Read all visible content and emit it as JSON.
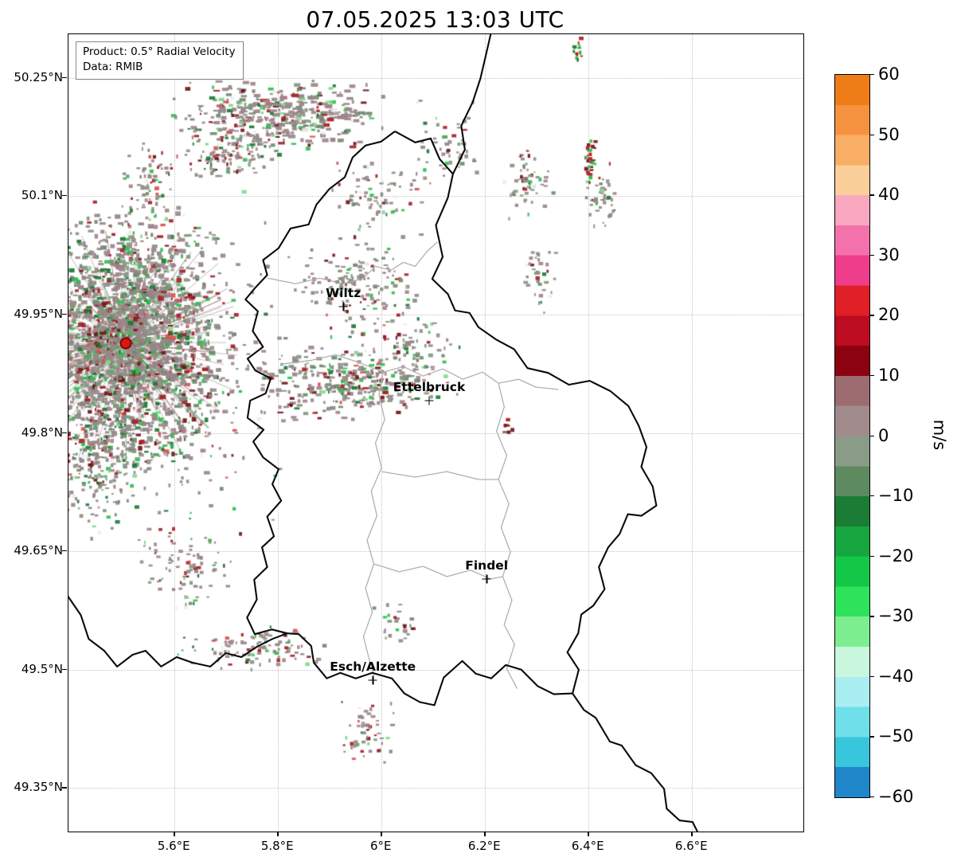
{
  "title": "07.05.2025 13:03 UTC",
  "info_box": {
    "line1": "Product: 0.5° Radial Velocity",
    "line2": "Data: RMIB"
  },
  "axes": {
    "lon_min": 5.395,
    "lon_max": 6.815,
    "lat_min": 49.295,
    "lat_max": 50.305,
    "x_ticks": [
      {
        "v": 5.6,
        "label": "5.6°E"
      },
      {
        "v": 5.8,
        "label": "5.8°E"
      },
      {
        "v": 6.0,
        "label": "6°E"
      },
      {
        "v": 6.2,
        "label": "6.2°E"
      },
      {
        "v": 6.4,
        "label": "6.4°E"
      },
      {
        "v": 6.6,
        "label": "6.6°E"
      }
    ],
    "y_ticks": [
      {
        "v": 50.25,
        "label": "50.25°N"
      },
      {
        "v": 50.1,
        "label": "50.1°N"
      },
      {
        "v": 49.95,
        "label": "49.95°N"
      },
      {
        "v": 49.8,
        "label": "49.8°N"
      },
      {
        "v": 49.65,
        "label": "49.65°N"
      },
      {
        "v": 49.5,
        "label": "49.5°N"
      },
      {
        "v": 49.35,
        "label": "49.35°N"
      }
    ],
    "grid_color": "#c4c4c4"
  },
  "colorbar": {
    "label": "m/s",
    "min": -60,
    "max": 60,
    "ticks": [
      {
        "v": 60,
        "label": "60"
      },
      {
        "v": 50,
        "label": "50"
      },
      {
        "v": 40,
        "label": "40"
      },
      {
        "v": 30,
        "label": "30"
      },
      {
        "v": 20,
        "label": "20"
      },
      {
        "v": 10,
        "label": "10"
      },
      {
        "v": 0,
        "label": "0"
      },
      {
        "v": -10,
        "label": "−10"
      },
      {
        "v": -20,
        "label": "−20"
      },
      {
        "v": -30,
        "label": "−30"
      },
      {
        "v": -40,
        "label": "−40"
      },
      {
        "v": -50,
        "label": "−50"
      },
      {
        "v": -60,
        "label": "−60"
      }
    ],
    "bands": [
      {
        "from": 55,
        "to": 60,
        "color": "#ee7d18"
      },
      {
        "from": 50,
        "to": 55,
        "color": "#f5923f"
      },
      {
        "from": 45,
        "to": 50,
        "color": "#f9ae66"
      },
      {
        "from": 40,
        "to": 45,
        "color": "#fbcf9a"
      },
      {
        "from": 35,
        "to": 40,
        "color": "#f9a8c0"
      },
      {
        "from": 30,
        "to": 35,
        "color": "#f472ab"
      },
      {
        "from": 25,
        "to": 30,
        "color": "#ee3d8a"
      },
      {
        "from": 20,
        "to": 25,
        "color": "#e01f26"
      },
      {
        "from": 15,
        "to": 20,
        "color": "#bb0c22"
      },
      {
        "from": 10,
        "to": 15,
        "color": "#8c0210"
      },
      {
        "from": 5,
        "to": 10,
        "color": "#9d6c70"
      },
      {
        "from": 0,
        "to": 5,
        "color": "#a18b8d"
      },
      {
        "from": -5,
        "to": 0,
        "color": "#8a9b87"
      },
      {
        "from": -10,
        "to": -5,
        "color": "#5d8a5f"
      },
      {
        "from": -15,
        "to": -10,
        "color": "#1b7c35"
      },
      {
        "from": -20,
        "to": -15,
        "color": "#17a53f"
      },
      {
        "from": -25,
        "to": -20,
        "color": "#13c847"
      },
      {
        "from": -30,
        "to": -25,
        "color": "#2ee25b"
      },
      {
        "from": -35,
        "to": -30,
        "color": "#7dee8f"
      },
      {
        "from": -40,
        "to": -35,
        "color": "#c9f7dd"
      },
      {
        "from": -45,
        "to": -40,
        "color": "#a8eef2"
      },
      {
        "from": -50,
        "to": -45,
        "color": "#6fdfe9"
      },
      {
        "from": -55,
        "to": -50,
        "color": "#38c6dc"
      },
      {
        "from": -60,
        "to": -55,
        "color": "#1f86c9"
      }
    ]
  },
  "cities": [
    {
      "name": "Wiltz",
      "lon": 5.926,
      "lat": 49.96
    },
    {
      "name": "Ettelbruck",
      "lon": 6.092,
      "lat": 49.841
    },
    {
      "name": "Findel",
      "lon": 6.203,
      "lat": 49.615
    },
    {
      "name": "Esch/Alzette",
      "lon": 5.983,
      "lat": 49.487
    }
  ],
  "radar_site": {
    "lon": 5.505,
    "lat": 49.914,
    "fill": "#e01212",
    "edge": "#7c0606"
  },
  "map": {
    "country_border_color": "#0a0a0a",
    "district_border_color": "#b0b0b0",
    "country_borders": [
      [
        [
          6.026,
          50.182
        ],
        [
          6.065,
          50.168
        ],
        [
          6.095,
          50.173
        ],
        [
          6.112,
          50.147
        ],
        [
          6.138,
          50.128
        ],
        [
          6.128,
          50.098
        ],
        [
          6.105,
          50.063
        ],
        [
          6.118,
          50.023
        ],
        [
          6.098,
          49.995
        ],
        [
          6.128,
          49.976
        ],
        [
          6.142,
          49.955
        ],
        [
          6.17,
          49.952
        ],
        [
          6.187,
          49.934
        ],
        [
          6.222,
          49.918
        ],
        [
          6.256,
          49.906
        ],
        [
          6.282,
          49.882
        ],
        [
          6.322,
          49.876
        ],
        [
          6.362,
          49.861
        ],
        [
          6.402,
          49.866
        ],
        [
          6.442,
          49.853
        ],
        [
          6.477,
          49.834
        ],
        [
          6.497,
          49.809
        ],
        [
          6.512,
          49.782
        ],
        [
          6.502,
          49.757
        ],
        [
          6.524,
          49.732
        ],
        [
          6.531,
          49.708
        ],
        [
          6.502,
          49.695
        ],
        [
          6.476,
          49.697
        ],
        [
          6.46,
          49.672
        ],
        [
          6.438,
          49.655
        ],
        [
          6.42,
          49.63
        ],
        [
          6.431,
          49.602
        ],
        [
          6.409,
          49.581
        ],
        [
          6.386,
          49.57
        ],
        [
          6.38,
          49.546
        ],
        [
          6.359,
          49.522
        ],
        [
          6.381,
          49.5
        ],
        [
          6.369,
          49.47
        ],
        [
          6.333,
          49.469
        ],
        [
          6.302,
          49.479
        ],
        [
          6.27,
          49.5
        ],
        [
          6.24,
          49.506
        ],
        [
          6.212,
          49.489
        ],
        [
          6.182,
          49.495
        ],
        [
          6.156,
          49.511
        ],
        [
          6.12,
          49.49
        ],
        [
          6.102,
          49.455
        ],
        [
          6.074,
          49.459
        ],
        [
          6.044,
          49.47
        ],
        [
          6.02,
          49.489
        ],
        [
          5.982,
          49.496
        ],
        [
          5.95,
          49.489
        ],
        [
          5.92,
          49.496
        ],
        [
          5.894,
          49.489
        ],
        [
          5.869,
          49.509
        ],
        [
          5.864,
          49.53
        ],
        [
          5.84,
          49.545
        ],
        [
          5.818,
          49.546
        ],
        [
          5.788,
          49.551
        ],
        [
          5.755,
          49.545
        ],
        [
          5.74,
          49.566
        ],
        [
          5.759,
          49.589
        ],
        [
          5.754,
          49.614
        ],
        [
          5.779,
          49.63
        ],
        [
          5.769,
          49.655
        ],
        [
          5.792,
          49.669
        ],
        [
          5.779,
          49.694
        ],
        [
          5.806,
          49.714
        ],
        [
          5.789,
          49.735
        ],
        [
          5.801,
          49.754
        ],
        [
          5.771,
          49.769
        ],
        [
          5.752,
          49.789
        ],
        [
          5.772,
          49.804
        ],
        [
          5.741,
          49.819
        ],
        [
          5.746,
          49.841
        ],
        [
          5.776,
          49.85
        ],
        [
          5.786,
          49.869
        ],
        [
          5.756,
          49.879
        ],
        [
          5.741,
          49.894
        ],
        [
          5.771,
          49.909
        ],
        [
          5.751,
          49.929
        ],
        [
          5.761,
          49.954
        ],
        [
          5.737,
          49.969
        ],
        [
          5.756,
          49.984
        ],
        [
          5.779,
          50.0
        ],
        [
          5.771,
          50.019
        ],
        [
          5.801,
          50.034
        ],
        [
          5.824,
          50.059
        ],
        [
          5.859,
          50.064
        ],
        [
          5.874,
          50.089
        ],
        [
          5.899,
          50.109
        ],
        [
          5.929,
          50.124
        ],
        [
          5.944,
          50.149
        ],
        [
          5.969,
          50.164
        ],
        [
          5.999,
          50.169
        ],
        [
          6.026,
          50.182
        ]
      ],
      [
        [
          6.138,
          50.128
        ],
        [
          6.161,
          50.159
        ],
        [
          6.154,
          50.189
        ],
        [
          6.176,
          50.219
        ],
        [
          6.191,
          50.249
        ],
        [
          6.201,
          50.277
        ],
        [
          6.212,
          50.308
        ]
      ],
      [
        [
          5.818,
          49.546
        ],
        [
          5.789,
          49.539
        ],
        [
          5.759,
          49.529
        ],
        [
          5.729,
          49.516
        ],
        [
          5.699,
          49.521
        ],
        [
          5.669,
          49.504
        ],
        [
          5.634,
          49.509
        ],
        [
          5.604,
          49.516
        ],
        [
          5.574,
          49.504
        ],
        [
          5.544,
          49.524
        ],
        [
          5.519,
          49.519
        ],
        [
          5.489,
          49.504
        ],
        [
          5.464,
          49.524
        ],
        [
          5.434,
          49.539
        ],
        [
          5.419,
          49.569
        ],
        [
          5.393,
          49.594
        ]
      ],
      [
        [
          6.369,
          49.47
        ],
        [
          6.391,
          49.449
        ],
        [
          6.414,
          49.439
        ],
        [
          6.441,
          49.409
        ],
        [
          6.464,
          49.404
        ],
        [
          6.491,
          49.379
        ],
        [
          6.521,
          49.369
        ],
        [
          6.546,
          49.349
        ],
        [
          6.551,
          49.324
        ],
        [
          6.576,
          49.309
        ],
        [
          6.601,
          49.307
        ],
        [
          6.611,
          49.294
        ]
      ]
    ],
    "district_borders": [
      [
        [
          5.806,
          49.887
        ],
        [
          5.865,
          49.892
        ],
        [
          5.911,
          49.899
        ],
        [
          5.957,
          49.889
        ],
        [
          6.003,
          49.877
        ],
        [
          6.042,
          49.884
        ],
        [
          6.08,
          49.872
        ],
        [
          6.118,
          49.881
        ],
        [
          6.157,
          49.868
        ],
        [
          6.195,
          49.877
        ],
        [
          6.226,
          49.863
        ],
        [
          6.265,
          49.868
        ],
        [
          6.298,
          49.858
        ],
        [
          6.342,
          49.855
        ]
      ],
      [
        [
          6.003,
          49.877
        ],
        [
          5.995,
          49.848
        ],
        [
          6.006,
          49.817
        ],
        [
          5.988,
          49.787
        ],
        [
          6.0,
          49.756
        ],
        [
          5.98,
          49.726
        ],
        [
          5.991,
          49.695
        ],
        [
          5.972,
          49.664
        ],
        [
          5.985,
          49.634
        ],
        [
          5.969,
          49.603
        ],
        [
          5.982,
          49.573
        ],
        [
          5.965,
          49.542
        ],
        [
          5.975,
          49.516
        ],
        [
          5.985,
          49.493
        ]
      ],
      [
        [
          6.226,
          49.863
        ],
        [
          6.237,
          49.833
        ],
        [
          6.222,
          49.802
        ],
        [
          6.242,
          49.771
        ],
        [
          6.226,
          49.741
        ],
        [
          6.246,
          49.71
        ],
        [
          6.231,
          49.68
        ],
        [
          6.249,
          49.649
        ],
        [
          6.234,
          49.618
        ],
        [
          6.252,
          49.588
        ],
        [
          6.237,
          49.557
        ],
        [
          6.257,
          49.532
        ],
        [
          6.242,
          49.501
        ],
        [
          6.262,
          49.476
        ]
      ],
      [
        [
          6.0,
          49.751
        ],
        [
          6.065,
          49.744
        ],
        [
          6.126,
          49.751
        ],
        [
          6.188,
          49.741
        ],
        [
          6.226,
          49.741
        ]
      ],
      [
        [
          5.985,
          49.634
        ],
        [
          6.034,
          49.624
        ],
        [
          6.08,
          49.631
        ],
        [
          6.126,
          49.618
        ],
        [
          6.172,
          49.626
        ],
        [
          6.211,
          49.615
        ],
        [
          6.234,
          49.618
        ]
      ],
      [
        [
          5.78,
          49.996
        ],
        [
          5.834,
          49.989
        ],
        [
          5.88,
          49.996
        ],
        [
          5.926,
          49.989
        ],
        [
          5.965,
          49.996
        ]
      ],
      [
        [
          5.965,
          49.996
        ],
        [
          5.988,
          50.011
        ],
        [
          6.018,
          50.006
        ],
        [
          6.042,
          50.016
        ],
        [
          6.065,
          50.011
        ],
        [
          6.088,
          50.03
        ],
        [
          6.108,
          50.042
        ]
      ]
    ]
  },
  "speckles": {
    "seed": 1337,
    "palette": [
      [
        "#9c8689",
        40
      ],
      [
        "#8e8486",
        10
      ],
      [
        "#879584",
        14
      ],
      [
        "#6d8a6f",
        7
      ],
      [
        "#1c7a33",
        6
      ],
      [
        "#2fbf4e",
        5
      ],
      [
        "#7fd98c",
        3
      ],
      [
        "#a32026",
        6
      ],
      [
        "#701318",
        4
      ],
      [
        "#d94f54",
        2
      ],
      [
        "#ebebeb",
        3
      ]
    ],
    "rays": {
      "lon": 5.505,
      "lat": 49.914,
      "count": 240,
      "min_len": 15,
      "max_len": 155,
      "alpha": 0.45
    },
    "clusters": [
      {
        "lon": 5.505,
        "lat": 49.914,
        "rlon": 0.21,
        "rlat": 0.17,
        "n": 2300,
        "wmax": 6,
        "hmax": 4
      },
      {
        "lon": 5.52,
        "lat": 49.9,
        "rlon": 0.32,
        "rlat": 0.24,
        "n": 520
      },
      {
        "lon": 5.8,
        "lat": 50.205,
        "rlon": 0.21,
        "rlat": 0.045,
        "n": 430,
        "wmax": 7
      },
      {
        "lon": 5.7,
        "lat": 50.155,
        "rlon": 0.1,
        "rlat": 0.035,
        "n": 130
      },
      {
        "lon": 6.28,
        "lat": 50.12,
        "rlon": 0.05,
        "rlat": 0.05,
        "n": 60
      },
      {
        "lon": 6.42,
        "lat": 50.1,
        "rlon": 0.03,
        "rlat": 0.045,
        "n": 45
      },
      {
        "lon": 6.12,
        "lat": 50.17,
        "rlon": 0.07,
        "rlat": 0.055,
        "n": 55
      },
      {
        "lon": 5.99,
        "lat": 50.1,
        "rlon": 0.1,
        "rlat": 0.05,
        "n": 80
      },
      {
        "lon": 5.95,
        "lat": 49.99,
        "rlon": 0.13,
        "rlat": 0.07,
        "n": 170
      },
      {
        "lon": 5.92,
        "lat": 49.865,
        "rlon": 0.18,
        "rlat": 0.05,
        "n": 330,
        "wmax": 6
      },
      {
        "lon": 6.06,
        "lat": 49.9,
        "rlon": 0.09,
        "rlat": 0.06,
        "n": 80
      },
      {
        "lon": 6.3,
        "lat": 50.0,
        "rlon": 0.04,
        "rlat": 0.05,
        "n": 35
      },
      {
        "lon": 5.62,
        "lat": 49.63,
        "rlon": 0.1,
        "rlat": 0.06,
        "n": 90
      },
      {
        "lon": 5.75,
        "lat": 49.53,
        "rlon": 0.16,
        "rlat": 0.03,
        "n": 110
      },
      {
        "lon": 5.97,
        "lat": 49.42,
        "rlon": 0.06,
        "rlat": 0.05,
        "n": 55
      },
      {
        "lon": 6.02,
        "lat": 49.56,
        "rlon": 0.05,
        "rlat": 0.03,
        "n": 25
      },
      {
        "lon": 6.24,
        "lat": 49.81,
        "rlon": 0.012,
        "rlat": 0.012,
        "n": 8,
        "palette": [
          [
            "#b01c22",
            5
          ],
          [
            "#701318",
            2
          ],
          [
            "#2fbf4e",
            2
          ]
        ]
      },
      {
        "lon": 5.55,
        "lat": 50.12,
        "rlon": 0.06,
        "rlat": 0.05,
        "n": 65
      },
      {
        "lon": 5.45,
        "lat": 49.75,
        "rlon": 0.08,
        "rlat": 0.08,
        "n": 140
      },
      {
        "lon": 6.4,
        "lat": 50.145,
        "rlon": 0.012,
        "rlat": 0.035,
        "n": 30,
        "palette": [
          [
            "#b01c22",
            5
          ],
          [
            "#701318",
            3
          ],
          [
            "#2fbf4e",
            4
          ]
        ]
      },
      {
        "lon": 6.377,
        "lat": 50.287,
        "rlon": 0.01,
        "rlat": 0.02,
        "n": 14,
        "palette": [
          [
            "#2fbf4e",
            5
          ],
          [
            "#1c7a33",
            2
          ],
          [
            "#b01c22",
            1
          ]
        ]
      }
    ]
  }
}
